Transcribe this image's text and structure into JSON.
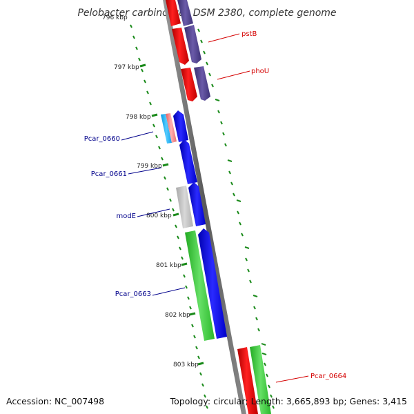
{
  "title": "Pelobacter carbinolicus DSM 2380, complete genome",
  "footer": {
    "accession": "Accession: NC_007498",
    "summary": "Topology: circular; Length: 3,665,893 bp; Genes: 3,415"
  },
  "ticks": [
    {
      "label": "796 kbp",
      "pos_kbp": 796
    },
    {
      "label": "797 kbp",
      "pos_kbp": 797
    },
    {
      "label": "798 kbp",
      "pos_kbp": 798
    },
    {
      "label": "799 kbp",
      "pos_kbp": 799
    },
    {
      "label": "800 kbp",
      "pos_kbp": 800
    },
    {
      "label": "801 kbp",
      "pos_kbp": 801
    },
    {
      "label": "802 kbp",
      "pos_kbp": 802
    },
    {
      "label": "803 kbp",
      "pos_kbp": 803
    }
  ],
  "gene_labels": [
    {
      "name": "pstB",
      "strand": "forward",
      "color": "#d40000"
    },
    {
      "name": "phoU",
      "strand": "forward",
      "color": "#d40000"
    },
    {
      "name": "Pcar_0660",
      "strand": "reverse",
      "color": "#00008b"
    },
    {
      "name": "Pcar_0661",
      "strand": "reverse",
      "color": "#00008b"
    },
    {
      "name": "modE",
      "strand": "reverse",
      "color": "#00008b"
    },
    {
      "name": "Pcar_0663",
      "strand": "reverse",
      "color": "#00008b"
    },
    {
      "name": "Pcar_0664",
      "strand": "forward",
      "color": "#d40000"
    }
  ],
  "colors": {
    "backbone": "#808080",
    "tick": "#1a8a1a",
    "cds": "#ff0000",
    "cog": "#4b3f8f",
    "blue_gene": "#0000ee",
    "green_gene": "#33cc33",
    "gray_gene": "#b8b8b8",
    "cyan_gene": "#1eb4ff",
    "pink_gene": "#f08080"
  }
}
